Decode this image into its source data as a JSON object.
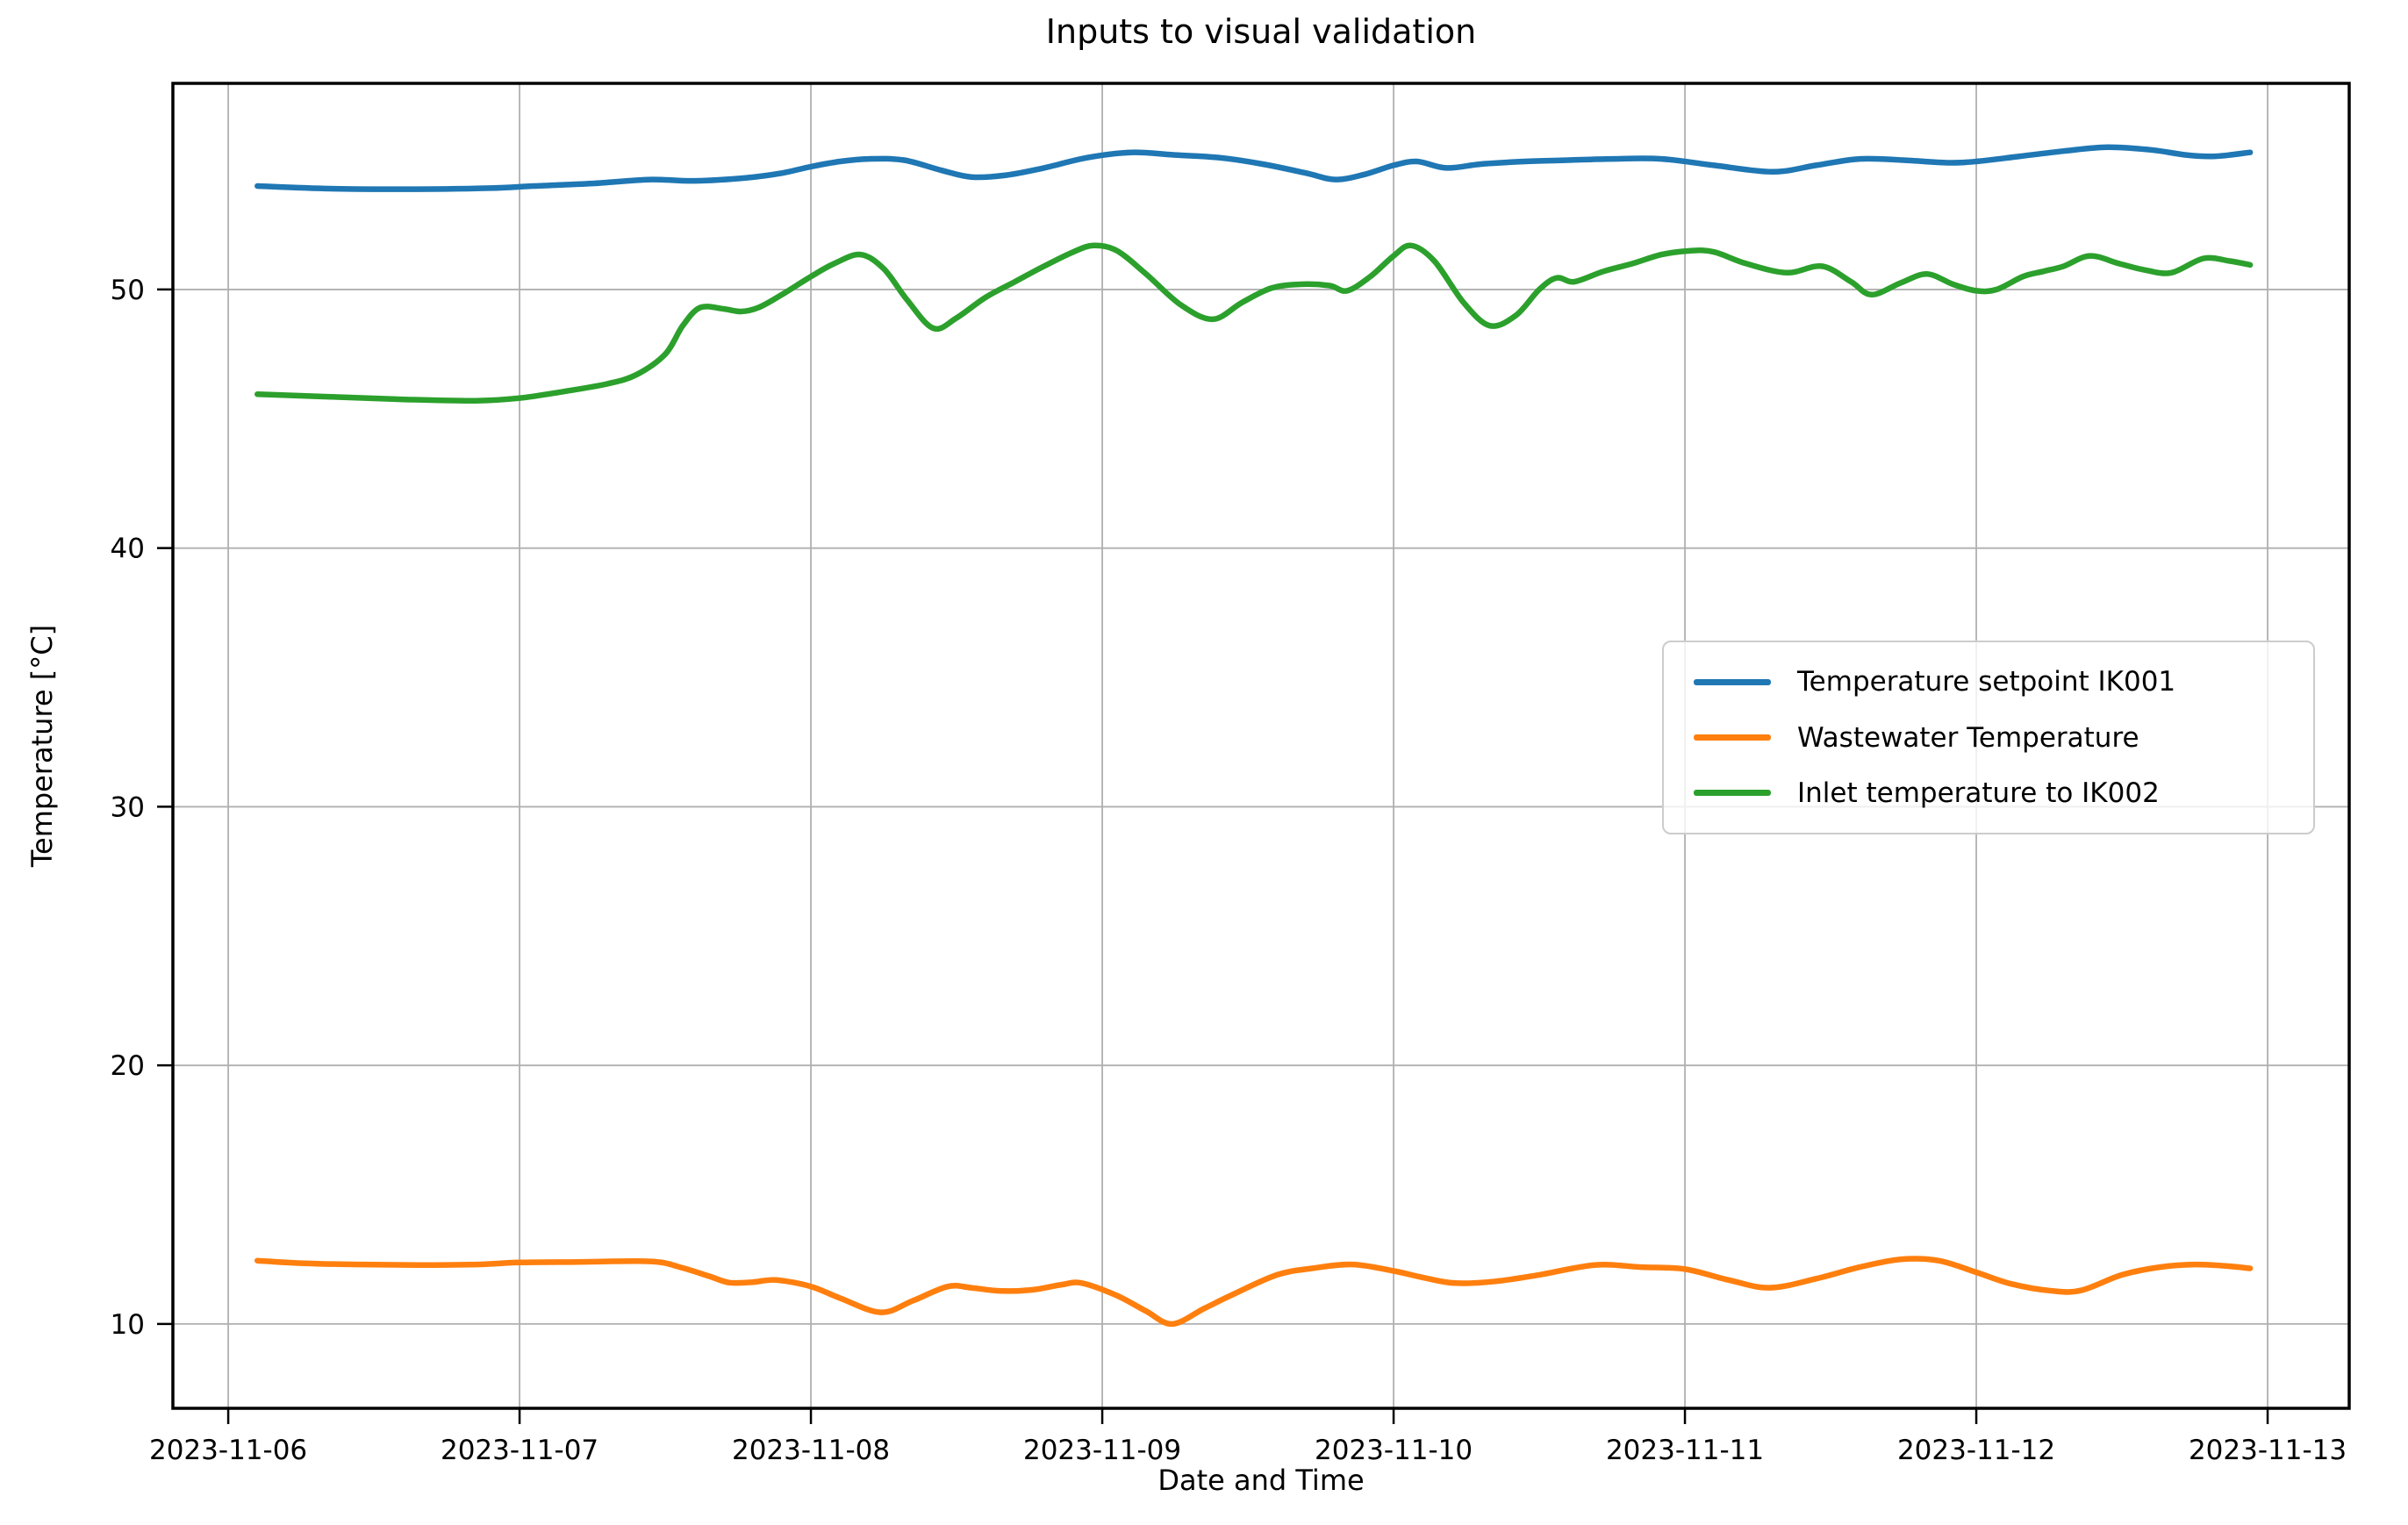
{
  "figure": {
    "background": "#ffffff",
    "title": "Inputs to visual validation"
  },
  "axes": {
    "xlabel": "Date and Time",
    "ylabel": "Temperature [°C]",
    "grid_color": "#b0b0b0",
    "spine_color": "#000000",
    "tick_color": "#000000"
  },
  "legend": {
    "entries": [
      {
        "label": "Temperature setpoint IK001",
        "color": "#1f77b4"
      },
      {
        "label": "Wastewater Temperature",
        "color": "#ff7f0e"
      },
      {
        "label": "Inlet temperature to IK002",
        "color": "#2ca02c"
      }
    ]
  },
  "chart_data": {
    "type": "line",
    "title": "Inputs to visual validation",
    "xlabel": "Date and Time",
    "ylabel": "Temperature [°C]",
    "x_unit": "days since 2023-11-06 00:00",
    "xlim": [
      -0.19,
      7.28
    ],
    "ylim": [
      6.74,
      57.97
    ],
    "grid": true,
    "legend_position": "center-right",
    "x_ticks": [
      {
        "value": 0,
        "label": "2023-11-06"
      },
      {
        "value": 1,
        "label": "2023-11-07"
      },
      {
        "value": 2,
        "label": "2023-11-08"
      },
      {
        "value": 3,
        "label": "2023-11-09"
      },
      {
        "value": 4,
        "label": "2023-11-10"
      },
      {
        "value": 5,
        "label": "2023-11-11"
      },
      {
        "value": 6,
        "label": "2023-11-12"
      },
      {
        "value": 7,
        "label": "2023-11-13"
      }
    ],
    "y_ticks": [
      {
        "value": 10,
        "label": "10"
      },
      {
        "value": 20,
        "label": "20"
      },
      {
        "value": 30,
        "label": "30"
      },
      {
        "value": 40,
        "label": "40"
      },
      {
        "value": 50,
        "label": "50"
      }
    ],
    "series": [
      {
        "name": "Temperature setpoint IK001",
        "color": "#1f77b4",
        "points": [
          [
            0.1,
            54.0
          ],
          [
            0.35,
            53.9
          ],
          [
            0.65,
            53.88
          ],
          [
            0.9,
            53.92
          ],
          [
            1.05,
            54.0
          ],
          [
            1.25,
            54.1
          ],
          [
            1.45,
            54.25
          ],
          [
            1.6,
            54.2
          ],
          [
            1.78,
            54.32
          ],
          [
            1.9,
            54.5
          ],
          [
            2.0,
            54.75
          ],
          [
            2.1,
            54.95
          ],
          [
            2.2,
            55.05
          ],
          [
            2.32,
            55.0
          ],
          [
            2.45,
            54.6
          ],
          [
            2.55,
            54.35
          ],
          [
            2.67,
            54.42
          ],
          [
            2.8,
            54.7
          ],
          [
            2.95,
            55.1
          ],
          [
            3.1,
            55.3
          ],
          [
            3.25,
            55.2
          ],
          [
            3.4,
            55.1
          ],
          [
            3.55,
            54.85
          ],
          [
            3.7,
            54.5
          ],
          [
            3.8,
            54.25
          ],
          [
            3.9,
            54.45
          ],
          [
            4.0,
            54.8
          ],
          [
            4.08,
            54.95
          ],
          [
            4.18,
            54.7
          ],
          [
            4.3,
            54.85
          ],
          [
            4.45,
            54.95
          ],
          [
            4.6,
            55.0
          ],
          [
            4.75,
            55.05
          ],
          [
            4.92,
            55.05
          ],
          [
            5.1,
            54.8
          ],
          [
            5.3,
            54.55
          ],
          [
            5.45,
            54.8
          ],
          [
            5.6,
            55.05
          ],
          [
            5.75,
            55.0
          ],
          [
            5.9,
            54.9
          ],
          [
            6.0,
            54.95
          ],
          [
            6.15,
            55.15
          ],
          [
            6.3,
            55.35
          ],
          [
            6.45,
            55.5
          ],
          [
            6.6,
            55.4
          ],
          [
            6.72,
            55.2
          ],
          [
            6.82,
            55.15
          ],
          [
            6.94,
            55.3
          ]
        ]
      },
      {
        "name": "Wastewater Temperature",
        "color": "#ff7f0e",
        "points": [
          [
            0.1,
            12.45
          ],
          [
            0.25,
            12.35
          ],
          [
            0.45,
            12.3
          ],
          [
            0.65,
            12.28
          ],
          [
            0.85,
            12.3
          ],
          [
            1.0,
            12.38
          ],
          [
            1.2,
            12.4
          ],
          [
            1.45,
            12.42
          ],
          [
            1.55,
            12.2
          ],
          [
            1.65,
            11.85
          ],
          [
            1.72,
            11.6
          ],
          [
            1.8,
            11.62
          ],
          [
            1.88,
            11.7
          ],
          [
            2.0,
            11.45
          ],
          [
            2.1,
            11.0
          ],
          [
            2.24,
            10.45
          ],
          [
            2.35,
            10.9
          ],
          [
            2.47,
            11.45
          ],
          [
            2.55,
            11.4
          ],
          [
            2.65,
            11.28
          ],
          [
            2.76,
            11.32
          ],
          [
            2.86,
            11.52
          ],
          [
            2.93,
            11.58
          ],
          [
            3.05,
            11.1
          ],
          [
            3.15,
            10.5
          ],
          [
            3.24,
            10.0
          ],
          [
            3.35,
            10.6
          ],
          [
            3.45,
            11.15
          ],
          [
            3.6,
            11.9
          ],
          [
            3.72,
            12.15
          ],
          [
            3.86,
            12.3
          ],
          [
            4.0,
            12.05
          ],
          [
            4.1,
            11.8
          ],
          [
            4.21,
            11.58
          ],
          [
            4.35,
            11.65
          ],
          [
            4.5,
            11.9
          ],
          [
            4.69,
            12.28
          ],
          [
            4.85,
            12.2
          ],
          [
            5.0,
            12.12
          ],
          [
            5.15,
            11.7
          ],
          [
            5.29,
            11.4
          ],
          [
            5.45,
            11.75
          ],
          [
            5.6,
            12.2
          ],
          [
            5.74,
            12.5
          ],
          [
            5.87,
            12.45
          ],
          [
            6.0,
            12.0
          ],
          [
            6.12,
            11.55
          ],
          [
            6.26,
            11.28
          ],
          [
            6.36,
            11.3
          ],
          [
            6.5,
            11.9
          ],
          [
            6.63,
            12.2
          ],
          [
            6.75,
            12.3
          ],
          [
            6.85,
            12.25
          ],
          [
            6.94,
            12.15
          ]
        ]
      },
      {
        "name": "Inlet temperature to IK002",
        "color": "#2ca02c",
        "points": [
          [
            0.1,
            45.95
          ],
          [
            0.35,
            45.85
          ],
          [
            0.6,
            45.75
          ],
          [
            0.85,
            45.7
          ],
          [
            1.0,
            45.8
          ],
          [
            1.15,
            46.05
          ],
          [
            1.3,
            46.35
          ],
          [
            1.4,
            46.7
          ],
          [
            1.5,
            47.5
          ],
          [
            1.56,
            48.6
          ],
          [
            1.62,
            49.3
          ],
          [
            1.7,
            49.25
          ],
          [
            1.76,
            49.15
          ],
          [
            1.82,
            49.3
          ],
          [
            1.9,
            49.8
          ],
          [
            2.0,
            50.5
          ],
          [
            2.08,
            51.0
          ],
          [
            2.17,
            51.35
          ],
          [
            2.25,
            50.8
          ],
          [
            2.33,
            49.6
          ],
          [
            2.42,
            48.5
          ],
          [
            2.5,
            48.9
          ],
          [
            2.6,
            49.7
          ],
          [
            2.7,
            50.3
          ],
          [
            2.8,
            50.9
          ],
          [
            2.9,
            51.45
          ],
          [
            2.97,
            51.7
          ],
          [
            3.05,
            51.5
          ],
          [
            3.15,
            50.6
          ],
          [
            3.27,
            49.4
          ],
          [
            3.38,
            48.85
          ],
          [
            3.48,
            49.5
          ],
          [
            3.58,
            50.05
          ],
          [
            3.68,
            50.2
          ],
          [
            3.78,
            50.15
          ],
          [
            3.84,
            49.95
          ],
          [
            3.92,
            50.5
          ],
          [
            4.0,
            51.3
          ],
          [
            4.06,
            51.7
          ],
          [
            4.14,
            51.1
          ],
          [
            4.24,
            49.5
          ],
          [
            4.33,
            48.6
          ],
          [
            4.42,
            49.0
          ],
          [
            4.5,
            50.0
          ],
          [
            4.56,
            50.45
          ],
          [
            4.62,
            50.3
          ],
          [
            4.72,
            50.7
          ],
          [
            4.82,
            51.0
          ],
          [
            4.92,
            51.35
          ],
          [
            5.02,
            51.5
          ],
          [
            5.1,
            51.45
          ],
          [
            5.21,
            51.0
          ],
          [
            5.35,
            50.65
          ],
          [
            5.47,
            50.9
          ],
          [
            5.57,
            50.3
          ],
          [
            5.64,
            49.8
          ],
          [
            5.74,
            50.25
          ],
          [
            5.83,
            50.6
          ],
          [
            5.92,
            50.2
          ],
          [
            6.0,
            49.95
          ],
          [
            6.07,
            50.0
          ],
          [
            6.16,
            50.5
          ],
          [
            6.23,
            50.7
          ],
          [
            6.3,
            50.9
          ],
          [
            6.39,
            51.3
          ],
          [
            6.49,
            51.0
          ],
          [
            6.58,
            50.75
          ],
          [
            6.67,
            50.65
          ],
          [
            6.78,
            51.2
          ],
          [
            6.87,
            51.1
          ],
          [
            6.94,
            50.95
          ]
        ]
      }
    ]
  }
}
